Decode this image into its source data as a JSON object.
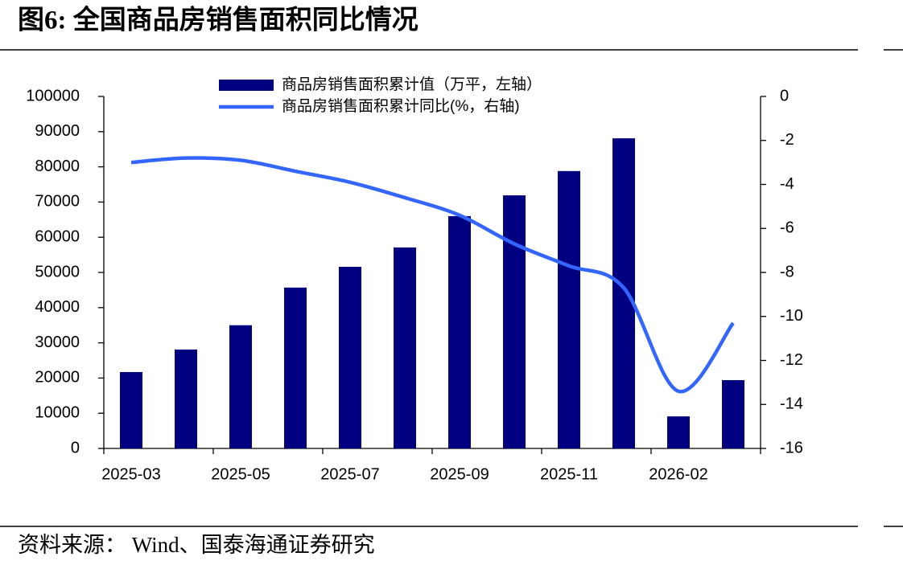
{
  "chart_data": {
    "type": "bar-line",
    "title": "图6:  全国商品房销售面积同比情况",
    "source": "资料来源： Wind、国泰海通证券研究",
    "categories": [
      "2025-03",
      null,
      "2025-05",
      null,
      "2025-07",
      null,
      "2025-09",
      null,
      "2025-11",
      null,
      "2026-02",
      null
    ],
    "series": [
      {
        "name": "商品房销售面积累计值（万平，左轴）",
        "type": "bar",
        "color": "#000080",
        "values": [
          21700,
          28100,
          35000,
          45700,
          51600,
          57100,
          66000,
          71900,
          78800,
          88100,
          9100,
          19400
        ]
      },
      {
        "name": "商品房销售面积累计同比(%，右轴)",
        "type": "line",
        "axis": "y2",
        "color": "#3366ff",
        "values": [
          -3.0,
          -2.8,
          -2.9,
          -3.4,
          -3.9,
          -4.6,
          -5.4,
          -6.7,
          -7.7,
          -8.7,
          -13.4,
          -10.3
        ]
      }
    ],
    "ylim": [
      0,
      100000
    ],
    "yticks": [
      0,
      10000,
      20000,
      30000,
      40000,
      50000,
      60000,
      70000,
      80000,
      90000,
      100000
    ],
    "y2lim": [
      -16,
      0
    ],
    "y2ticks": [
      0,
      -2,
      -4,
      -6,
      -8,
      -10,
      -12,
      -14,
      -16
    ],
    "grid": false
  }
}
